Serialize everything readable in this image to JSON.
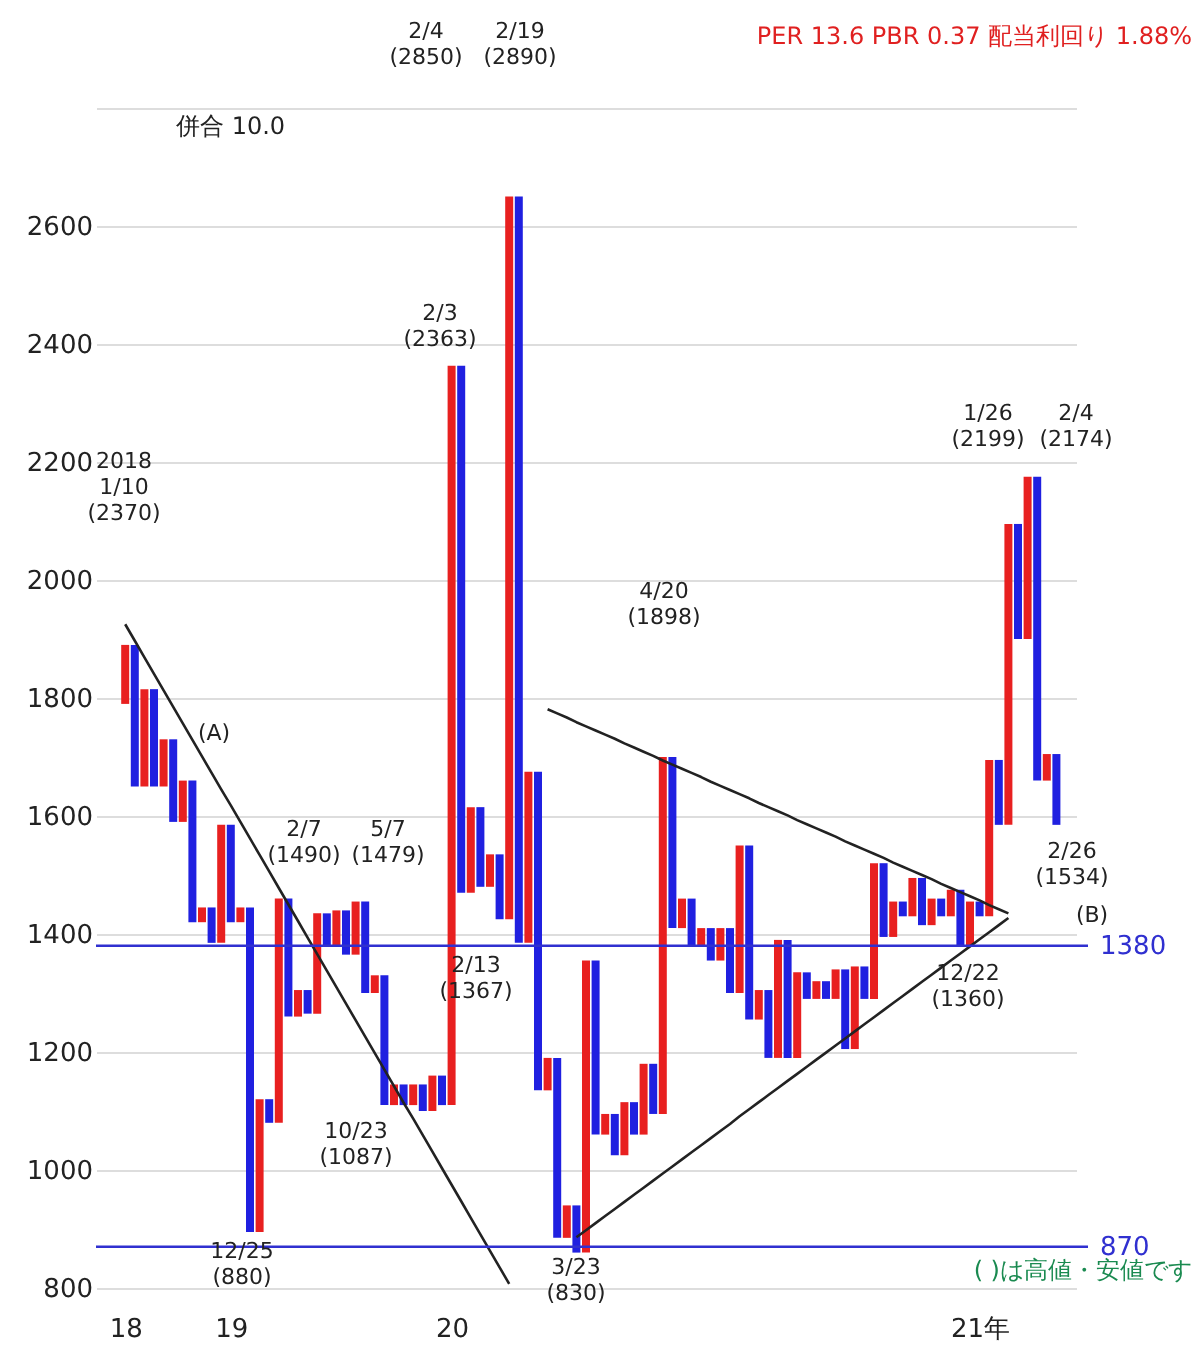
{
  "chart_data": {
    "type": "bar",
    "title": "PER 13.6 PBR 0.37 配当利回り 1.88%",
    "categories": [
      "18",
      null,
      null,
      null,
      null,
      null,
      null,
      null,
      null,
      null,
      null,
      "19",
      null,
      null,
      null,
      null,
      null,
      null,
      null,
      null,
      null,
      null,
      null,
      null,
      null,
      null,
      null,
      null,
      null,
      null,
      null,
      null,
      null,
      null,
      "20",
      null,
      null,
      null,
      null,
      null,
      null,
      null,
      null,
      null,
      null,
      null,
      null,
      null,
      null,
      null,
      null,
      null,
      null,
      null,
      null,
      null,
      null,
      null,
      null,
      null,
      null,
      null,
      null,
      null,
      null,
      null,
      null,
      null,
      null,
      null,
      null,
      null,
      null,
      null,
      null,
      null,
      null,
      null,
      null,
      null,
      null,
      null,
      null,
      null,
      null,
      null,
      null,
      null,
      null,
      "21年",
      null,
      null,
      null,
      null,
      null,
      null,
      null,
      null
    ],
    "ylim": [
      800,
      2800
    ],
    "yticks": [
      800,
      1000,
      1200,
      1400,
      1600,
      1800,
      2000,
      2200,
      2400,
      2600,
      {
        "value": 2800,
        "label": null
      }
    ],
    "grid": "y",
    "series": [
      {
        "base": [
          1790,
          1890,
          1650,
          1815,
          1650,
          1730,
          1590,
          1660,
          1420,
          1445,
          1385,
          1585,
          1420,
          1445,
          895,
          1120,
          1080,
          1460,
          1260,
          1305,
          1265,
          1435,
          1380,
          1440,
          1365,
          1455,
          1300,
          1330,
          1110,
          1145,
          1110,
          1145,
          1100,
          1160,
          1110,
          2363,
          1470,
          1615,
          1480,
          1535,
          1425,
          2650,
          1385,
          1675,
          1135,
          1190,
          885,
          940,
          860,
          1355,
          1060,
          1095,
          1025,
          1115,
          1060,
          1180,
          1095,
          1700,
          1410,
          1460,
          1380,
          1410,
          1355,
          1410,
          1300,
          1550,
          1255,
          1305,
          1190,
          1390,
          1190,
          1335,
          1290,
          1320,
          1290,
          1340,
          1205,
          1345,
          1290,
          1520,
          1395,
          1455,
          1430,
          1495,
          1415,
          1460,
          1430,
          1475,
          1380,
          1455,
          1430,
          1695,
          1585,
          2095,
          1900,
          2175,
          1660,
          1705
        ],
        "values": [
          100,
          -240,
          165,
          -165,
          80,
          -140,
          70,
          -240,
          25,
          -60,
          200,
          -165,
          25,
          -550,
          225,
          -40,
          380,
          -200,
          45,
          -40,
          170,
          -55,
          60,
          -75,
          90,
          -155,
          30,
          -220,
          35,
          -35,
          35,
          -45,
          60,
          -50,
          1253,
          -893,
          145,
          -135,
          55,
          -110,
          1225,
          -1265,
          290,
          -540,
          55,
          -305,
          55,
          -80,
          495,
          -295,
          35,
          -70,
          90,
          -55,
          120,
          -85,
          605,
          -290,
          50,
          -80,
          30,
          -55,
          55,
          -110,
          250,
          -295,
          50,
          -115,
          200,
          -200,
          145,
          -45,
          30,
          -30,
          50,
          -135,
          140,
          -55,
          230,
          -125,
          60,
          -25,
          65,
          -80,
          45,
          -30,
          45,
          -95,
          75,
          -25,
          265,
          -110,
          510,
          -195,
          275,
          -515,
          45,
          -120
        ],
        "colors": [
          "#e82020",
          "#2020e0",
          "#e82020",
          "#2020e0",
          "#e82020",
          "#2020e0",
          "#e82020",
          "#2020e0",
          "#e82020",
          "#2020e0",
          "#e82020",
          "#2020e0",
          "#e82020",
          "#2020e0",
          "#e82020",
          "#2020e0",
          "#e82020",
          "#2020e0",
          "#e82020",
          "#2020e0",
          "#e82020",
          "#2020e0",
          "#e82020",
          "#2020e0",
          "#e82020",
          "#2020e0",
          "#e82020",
          "#2020e0",
          "#e82020",
          "#2020e0",
          "#e82020",
          "#2020e0",
          "#e82020",
          "#2020e0",
          "#e82020",
          "#2020e0",
          "#e82020",
          "#2020e0",
          "#e82020",
          "#2020e0",
          "#e82020",
          "#2020e0",
          "#e82020",
          "#2020e0",
          "#e82020",
          "#2020e0",
          "#e82020",
          "#2020e0",
          "#e82020",
          "#2020e0",
          "#e82020",
          "#2020e0",
          "#e82020",
          "#2020e0",
          "#e82020",
          "#2020e0",
          "#e82020",
          "#2020e0",
          "#e82020",
          "#2020e0",
          "#e82020",
          "#2020e0",
          "#e82020",
          "#2020e0",
          "#e82020",
          "#2020e0",
          "#e82020",
          "#2020e0",
          "#e82020",
          "#2020e0",
          "#e82020",
          "#2020e0",
          "#e82020",
          "#2020e0",
          "#e82020",
          "#2020e0",
          "#e82020",
          "#2020e0",
          "#e82020",
          "#2020e0",
          "#e82020",
          "#2020e0",
          "#e82020",
          "#2020e0",
          "#e82020",
          "#2020e0",
          "#e82020",
          "#2020e0",
          "#e82020",
          "#2020e0",
          "#e82020",
          "#2020e0",
          "#e82020",
          "#2020e0",
          "#e82020",
          "#2020e0",
          "#e82020",
          "#2020e0"
        ]
      },
      {
        "type": "line",
        "color": "#222222",
        "values": [
          1925,
          1897,
          1869,
          1841,
          1813,
          1785,
          1757,
          1729,
          1701,
          1673,
          1645,
          1618,
          1590,
          1562,
          1534,
          1506,
          1478,
          1450,
          1422,
          1394,
          1366,
          1338,
          1310,
          1282,
          1254,
          1226,
          1198,
          1170,
          1142,
          1114,
          1087,
          1059,
          1031,
          1003,
          975,
          947,
          919,
          891,
          863,
          835,
          807,
          null,
          null,
          null,
          null,
          null,
          null,
          null,
          null,
          null,
          null,
          null,
          null,
          null,
          null,
          null,
          null,
          null,
          null,
          null,
          null,
          null,
          null,
          null,
          null,
          null,
          null,
          null,
          null,
          null,
          null,
          null,
          null,
          null,
          null,
          null,
          null,
          null,
          null,
          null,
          null,
          null,
          null,
          null,
          null,
          null,
          null,
          null,
          null,
          null,
          null,
          null,
          null,
          null,
          null,
          null,
          null,
          null
        ]
      },
      {
        "type": "line",
        "color": "#222222",
        "values": [
          null,
          null,
          null,
          null,
          null,
          null,
          null,
          null,
          null,
          null,
          null,
          null,
          null,
          null,
          null,
          null,
          null,
          null,
          null,
          null,
          null,
          null,
          null,
          null,
          null,
          null,
          null,
          null,
          null,
          null,
          null,
          null,
          null,
          null,
          null,
          null,
          null,
          null,
          null,
          null,
          null,
          null,
          null,
          null,
          1781,
          1774,
          1767,
          1759,
          1752,
          1745,
          1738,
          1731,
          1723,
          1716,
          1709,
          1702,
          1694,
          1687,
          1680,
          1673,
          1666,
          1658,
          1651,
          1644,
          1637,
          1630,
          1622,
          1615,
          1608,
          1601,
          1593,
          1586,
          1579,
          1572,
          1565,
          1557,
          1550,
          1543,
          1536,
          1529,
          1521,
          1514,
          1507,
          1500,
          1493,
          1485,
          1478,
          1471,
          1464,
          1457,
          1449,
          1442,
          1435,
          null,
          null,
          null,
          null,
          null
        ]
      },
      {
        "type": "line",
        "color": "#222222",
        "values": [
          null,
          null,
          null,
          null,
          null,
          null,
          null,
          null,
          null,
          null,
          null,
          null,
          null,
          null,
          null,
          null,
          null,
          null,
          null,
          null,
          null,
          null,
          null,
          null,
          null,
          null,
          null,
          null,
          null,
          null,
          null,
          null,
          null,
          null,
          null,
          null,
          null,
          null,
          null,
          null,
          null,
          null,
          null,
          null,
          null,
          null,
          null,
          886,
          898,
          910,
          922,
          934,
          946,
          958,
          970,
          982,
          994,
          1006,
          1018,
          1030,
          1042,
          1054,
          1066,
          1078,
          1091,
          1103,
          1115,
          1127,
          1139,
          1151,
          1163,
          1175,
          1187,
          1199,
          1211,
          1223,
          1235,
          1247,
          1259,
          1271,
          1283,
          1295,
          1307,
          1319,
          1331,
          1343,
          1355,
          1367,
          1379,
          1391,
          1403,
          1415,
          1427,
          null,
          null,
          null,
          null,
          null
        ]
      }
    ],
    "ref_lines": [
      {
        "axis": "y",
        "value": 1380,
        "label": "1380",
        "color": "#3030d0"
      },
      {
        "axis": "y",
        "value": 870,
        "label": "870",
        "color": "#3030d0"
      }
    ],
    "annotations": [
      "併合 10.0",
      "( )は高値・安値です",
      "2018\n1/10\n(2370)",
      "(A)",
      "2/7\n(1490)",
      "5/7\n(1479)",
      "12/25\n(880)",
      "10/23\n(1087)",
      "2/3\n(2363)",
      "2/4\n(2850)",
      "2/19\n(2890)",
      "2/13\n(1367)",
      "3/23\n(830)",
      "4/20\n(1898)",
      "12/22\n(1360)",
      "1/26\n(2199)",
      "2/4\n(2174)",
      "2/26\n(1534)",
      "(B)"
    ]
  }
}
